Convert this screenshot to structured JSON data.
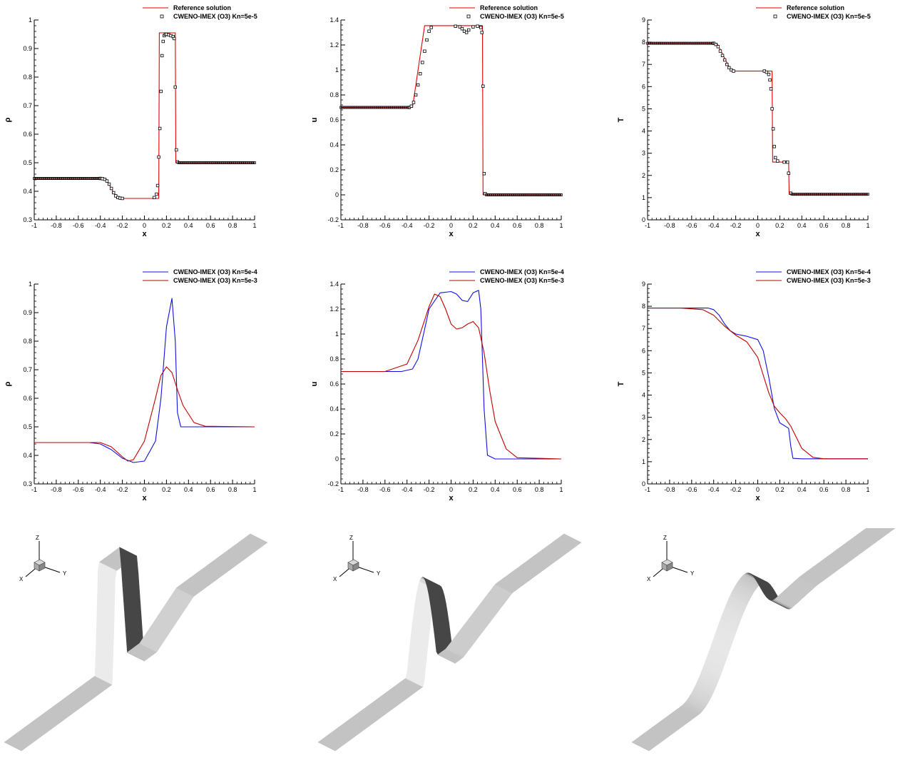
{
  "charts": [
    {
      "type": "line",
      "xlabel": "x",
      "ylabel": "ρ",
      "xlim": [
        -1,
        1
      ],
      "ylim": [
        0.3,
        1
      ],
      "yticks": [
        0.3,
        0.4,
        0.5,
        0.6,
        0.7,
        0.8,
        0.9,
        1
      ],
      "xticks": [
        -1,
        -0.8,
        -0.6,
        -0.4,
        -0.2,
        0,
        0.2,
        0.4,
        0.6,
        0.8,
        1
      ],
      "series": [
        {
          "name": "Reference solution",
          "style": "line",
          "color": "#e00000",
          "x": [
            -1,
            -0.35,
            -0.25,
            -0.245,
            0.13,
            0.135,
            0.28,
            0.285,
            1
          ],
          "y": [
            0.445,
            0.445,
            0.375,
            0.375,
            0.375,
            0.955,
            0.955,
            0.5,
            0.5
          ]
        },
        {
          "name": "CWENO-IMEX (O3) Kn=5e-5",
          "style": "markers",
          "color": "#000000",
          "x": [
            -0.4,
            -0.38,
            -0.36,
            -0.34,
            -0.32,
            -0.3,
            -0.28,
            -0.26,
            -0.24,
            -0.22,
            -0.2,
            0.09,
            0.11,
            0.12,
            0.13,
            0.14,
            0.15,
            0.16,
            0.17,
            0.18,
            0.19,
            0.2,
            0.22,
            0.24,
            0.26,
            0.27,
            0.28,
            0.29,
            0.3
          ],
          "y": [
            0.445,
            0.444,
            0.442,
            0.436,
            0.425,
            0.41,
            0.395,
            0.384,
            0.378,
            0.376,
            0.375,
            0.378,
            0.39,
            0.42,
            0.52,
            0.62,
            0.75,
            0.875,
            0.925,
            0.945,
            0.95,
            0.95,
            0.948,
            0.945,
            0.942,
            0.935,
            0.765,
            0.545,
            0.503
          ]
        }
      ]
    },
    {
      "type": "line",
      "xlabel": "x",
      "ylabel": "u",
      "xlim": [
        -1,
        1
      ],
      "ylim": [
        -0.2,
        1.4
      ],
      "yticks": [
        -0.2,
        0,
        0.2,
        0.4,
        0.6,
        0.8,
        1,
        1.2,
        1.4
      ],
      "xticks": [
        -1,
        -0.8,
        -0.6,
        -0.4,
        -0.2,
        0,
        0.2,
        0.4,
        0.6,
        0.8,
        1
      ],
      "series": [
        {
          "name": "Reference solution",
          "style": "line",
          "color": "#e00000",
          "x": [
            -1,
            -0.35,
            -0.24,
            0.285,
            0.29,
            1
          ],
          "y": [
            0.7,
            0.7,
            1.355,
            1.355,
            0,
            0
          ]
        },
        {
          "name": "CWENO-IMEX (O3) Kn=5e-5",
          "style": "markers",
          "color": "#000000",
          "x": [
            -0.38,
            -0.36,
            -0.34,
            -0.32,
            -0.3,
            -0.28,
            -0.26,
            -0.24,
            -0.22,
            -0.2,
            -0.18,
            0.04,
            0.08,
            0.1,
            0.12,
            0.14,
            0.16,
            0.2,
            0.24,
            0.27,
            0.28,
            0.29,
            0.3,
            0.31
          ],
          "y": [
            0.7,
            0.71,
            0.74,
            0.8,
            0.88,
            0.97,
            1.06,
            1.15,
            1.24,
            1.31,
            1.34,
            1.35,
            1.345,
            1.33,
            1.31,
            1.3,
            1.32,
            1.345,
            1.35,
            1.34,
            1.3,
            0.87,
            0.17,
            0.01
          ]
        }
      ]
    },
    {
      "type": "line",
      "xlabel": "x",
      "ylabel": "T",
      "xlim": [
        -1,
        1
      ],
      "ylim": [
        0,
        9
      ],
      "yticks": [
        0,
        1,
        2,
        3,
        4,
        5,
        6,
        7,
        8,
        9
      ],
      "xticks": [
        -1,
        -0.8,
        -0.6,
        -0.4,
        -0.2,
        0,
        0.2,
        0.4,
        0.6,
        0.8,
        1
      ],
      "series": [
        {
          "name": "Reference solution",
          "style": "line",
          "color": "#e00000",
          "x": [
            -1,
            -0.37,
            -0.24,
            0.13,
            0.135,
            0.28,
            0.285,
            1
          ],
          "y": [
            7.95,
            7.95,
            6.7,
            6.7,
            2.6,
            2.6,
            1.15,
            1.15
          ]
        },
        {
          "name": "CWENO-IMEX (O3) Kn=5e-5",
          "style": "markers",
          "color": "#000000",
          "x": [
            -0.4,
            -0.38,
            -0.36,
            -0.34,
            -0.32,
            -0.3,
            -0.28,
            -0.26,
            -0.24,
            -0.22,
            0.06,
            0.08,
            0.1,
            0.11,
            0.12,
            0.13,
            0.14,
            0.15,
            0.16,
            0.18,
            0.24,
            0.27,
            0.28,
            0.3
          ],
          "y": [
            7.95,
            7.9,
            7.8,
            7.6,
            7.4,
            7.2,
            7.0,
            6.85,
            6.75,
            6.7,
            6.7,
            6.65,
            6.55,
            6.3,
            5.9,
            5.0,
            4.1,
            3.3,
            2.8,
            2.65,
            2.6,
            2.6,
            2.1,
            1.2
          ]
        }
      ]
    },
    {
      "type": "line",
      "xlabel": "x",
      "ylabel": "ρ",
      "xlim": [
        -1,
        1
      ],
      "ylim": [
        0.3,
        1
      ],
      "yticks": [
        0.3,
        0.4,
        0.5,
        0.6,
        0.7,
        0.8,
        0.9,
        1
      ],
      "xticks": [
        -1,
        -0.8,
        -0.6,
        -0.4,
        -0.2,
        0,
        0.2,
        0.4,
        0.6,
        0.8,
        1
      ],
      "series": [
        {
          "name": "CWENO-IMEX (O3)  Kn=5e-4",
          "style": "line",
          "color": "#1010e0",
          "x": [
            -1,
            -0.5,
            -0.4,
            -0.3,
            -0.2,
            -0.1,
            0.0,
            0.1,
            0.15,
            0.2,
            0.25,
            0.28,
            0.3,
            0.33,
            0.4,
            1
          ],
          "y": [
            0.445,
            0.445,
            0.44,
            0.42,
            0.39,
            0.375,
            0.38,
            0.45,
            0.6,
            0.85,
            0.95,
            0.8,
            0.55,
            0.5,
            0.5,
            0.5
          ]
        },
        {
          "name": "CWENO-IMEX (O3)  Kn=5e-3",
          "style": "line",
          "color": "#c00000",
          "x": [
            -1,
            -0.4,
            -0.3,
            -0.2,
            -0.15,
            -0.1,
            0.0,
            0.1,
            0.15,
            0.2,
            0.25,
            0.3,
            0.35,
            0.45,
            0.55,
            1
          ],
          "y": [
            0.445,
            0.445,
            0.43,
            0.395,
            0.38,
            0.385,
            0.45,
            0.6,
            0.68,
            0.71,
            0.69,
            0.63,
            0.575,
            0.515,
            0.502,
            0.5
          ]
        }
      ]
    },
    {
      "type": "line",
      "xlabel": "x",
      "ylabel": "u",
      "xlim": [
        -1,
        1
      ],
      "ylim": [
        -0.2,
        1.4
      ],
      "yticks": [
        -0.2,
        0,
        0.2,
        0.4,
        0.6,
        0.8,
        1,
        1.2,
        1.4
      ],
      "xticks": [
        -1,
        -0.8,
        -0.6,
        -0.4,
        -0.2,
        0,
        0.2,
        0.4,
        0.6,
        0.8,
        1
      ],
      "series": [
        {
          "name": "CWENO-IMEX (O3)  Kn=5e-4",
          "style": "line",
          "color": "#1010e0",
          "x": [
            -1,
            -0.45,
            -0.35,
            -0.3,
            -0.25,
            -0.2,
            -0.1,
            0.0,
            0.05,
            0.1,
            0.15,
            0.2,
            0.25,
            0.27,
            0.3,
            0.33,
            0.4,
            1
          ],
          "y": [
            0.7,
            0.7,
            0.72,
            0.8,
            1.0,
            1.2,
            1.33,
            1.34,
            1.32,
            1.27,
            1.26,
            1.33,
            1.35,
            1.2,
            0.4,
            0.03,
            0.0,
            0.0
          ]
        },
        {
          "name": "CWENO-IMEX (O3)  Kn=5e-3",
          "style": "line",
          "color": "#c00000",
          "x": [
            -1,
            -0.6,
            -0.4,
            -0.3,
            -0.2,
            -0.15,
            -0.1,
            -0.05,
            0.0,
            0.05,
            0.1,
            0.15,
            0.2,
            0.25,
            0.3,
            0.35,
            0.4,
            0.5,
            0.6,
            1
          ],
          "y": [
            0.7,
            0.7,
            0.76,
            0.95,
            1.22,
            1.32,
            1.3,
            1.2,
            1.08,
            1.04,
            1.05,
            1.08,
            1.1,
            1.05,
            0.85,
            0.55,
            0.3,
            0.08,
            0.01,
            0.0
          ]
        }
      ]
    },
    {
      "type": "line",
      "xlabel": "x",
      "ylabel": "T",
      "xlim": [
        -1,
        1
      ],
      "ylim": [
        0,
        9
      ],
      "yticks": [
        0,
        1,
        2,
        3,
        4,
        5,
        6,
        7,
        8,
        9
      ],
      "xticks": [
        -1,
        -0.8,
        -0.6,
        -0.4,
        -0.2,
        0,
        0.2,
        0.4,
        0.6,
        0.8,
        1
      ],
      "series": [
        {
          "name": "CWENO-IMEX (O3)  Kn=5e-4",
          "style": "line",
          "color": "#1010e0",
          "x": [
            -1,
            -0.45,
            -0.4,
            -0.35,
            -0.3,
            -0.25,
            -0.2,
            -0.1,
            0.0,
            0.05,
            0.1,
            0.15,
            0.2,
            0.25,
            0.28,
            0.3,
            0.32,
            0.4,
            1
          ],
          "y": [
            7.92,
            7.92,
            7.85,
            7.6,
            7.2,
            6.9,
            6.75,
            6.65,
            6.5,
            6.0,
            4.8,
            3.4,
            2.75,
            2.6,
            2.5,
            1.7,
            1.15,
            1.13,
            1.13
          ]
        },
        {
          "name": "CWENO-IMEX (O3)  Kn=5e-3",
          "style": "line",
          "color": "#c00000",
          "x": [
            -1,
            -0.7,
            -0.5,
            -0.4,
            -0.3,
            -0.2,
            -0.1,
            0.0,
            0.05,
            0.1,
            0.15,
            0.2,
            0.25,
            0.3,
            0.35,
            0.4,
            0.5,
            0.6,
            0.7,
            1
          ],
          "y": [
            7.92,
            7.92,
            7.85,
            7.6,
            7.1,
            6.7,
            6.4,
            5.7,
            4.9,
            4.1,
            3.5,
            3.2,
            2.95,
            2.6,
            2.1,
            1.6,
            1.2,
            1.13,
            1.13,
            1.13
          ]
        }
      ]
    }
  ],
  "surfaces": [
    {
      "axes": {
        "z": "Z",
        "y": "Y",
        "x": "X"
      },
      "profile": "spike"
    },
    {
      "axes": {
        "z": "Z",
        "y": "Y",
        "x": "X"
      },
      "profile": "bump"
    },
    {
      "axes": {
        "z": "Z",
        "y": "Y",
        "x": "X"
      },
      "profile": "smooth"
    }
  ]
}
